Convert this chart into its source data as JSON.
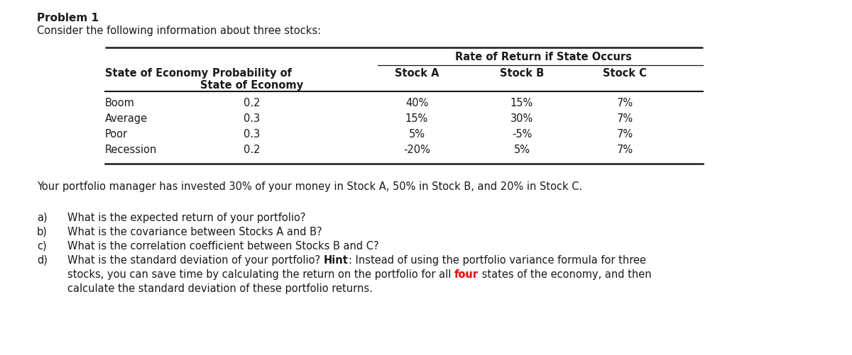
{
  "title": "Problem 1",
  "subtitle": "Consider the following information about three stocks:",
  "table_header_top": "Rate of Return if State Occurs",
  "rows": [
    [
      "Boom",
      "0.2",
      "40%",
      "15%",
      "7%"
    ],
    [
      "Average",
      "0.3",
      "15%",
      "30%",
      "7%"
    ],
    [
      "Poor",
      "0.3",
      "5%",
      "-5%",
      "7%"
    ],
    [
      "Recession",
      "0.2",
      "-20%",
      "5%",
      "7%"
    ]
  ],
  "portfolio_line": "Your portfolio manager has invested 30% of your money in Stock A, 50% in Stock B, and 20% in Stock C.",
  "bg_color": "#ffffff",
  "text_color": "#1a1a1a",
  "highlight_color": "#ff0000",
  "font_size": 10.5
}
